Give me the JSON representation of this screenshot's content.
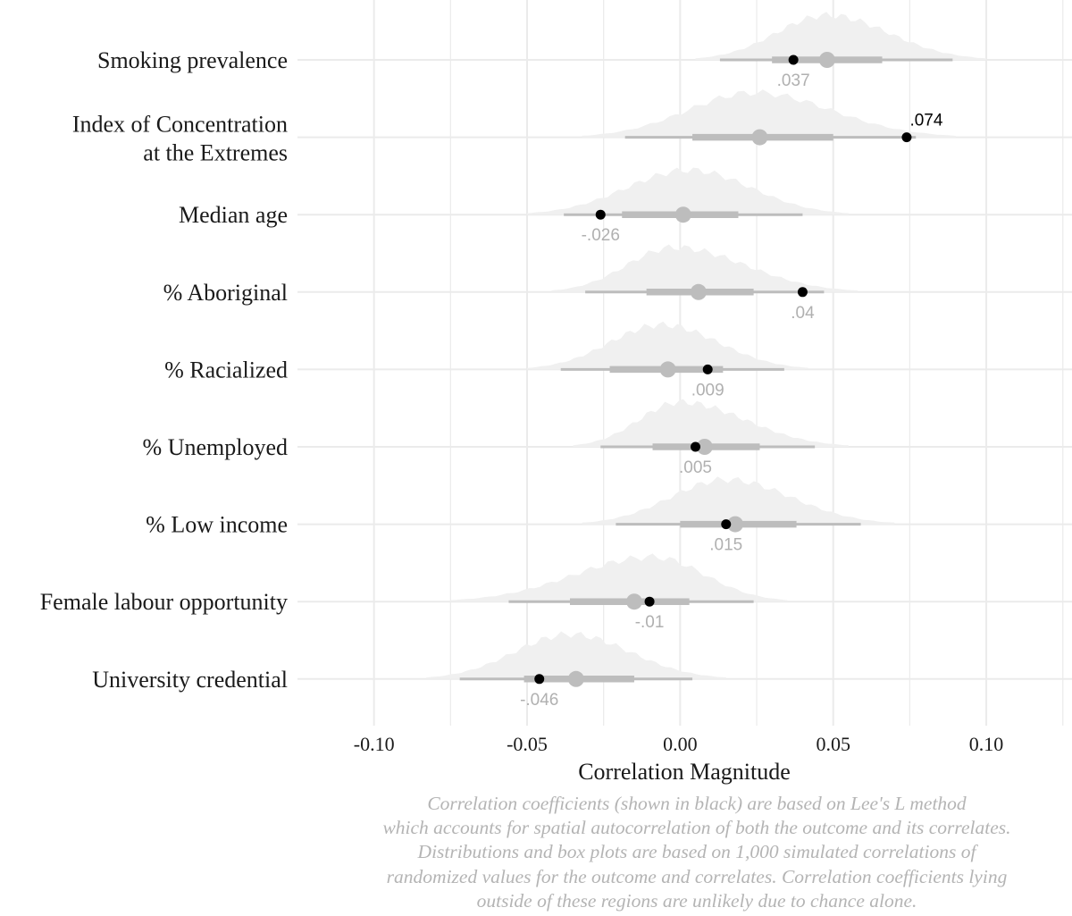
{
  "chart_data": {
    "type": "half-eye (distribution + interval) plot",
    "xlabel": "Correlation Magnitude",
    "xlim": [
      -0.125,
      0.128
    ],
    "xticks": [
      -0.1,
      -0.05,
      0.0,
      0.05,
      0.1
    ],
    "xtick_labels": [
      "-0.10",
      "-0.05",
      "0.00",
      "0.05",
      "0.10"
    ],
    "grid": "on",
    "colors": {
      "observed_point": "#000000",
      "observed_label_significant": "#000000",
      "observed_label": "#b0b0b0",
      "interval": "#bdbdbd",
      "median_point": "#bdbdbd",
      "density": "#f0f0f0",
      "grid": "#ebebeb"
    },
    "rows": [
      {
        "label": [
          "Smoking prevalence"
        ],
        "observed": 0.037,
        "observed_label": ".037",
        "significant": false,
        "label_pos": "below",
        "median": 0.048,
        "interval_66": [
          0.03,
          0.066
        ],
        "interval_95": [
          0.013,
          0.089
        ],
        "density_range": [
          0.005,
          0.1
        ],
        "density_peak": 0.048
      },
      {
        "label": [
          "Index of Concentration",
          "at the Extremes"
        ],
        "observed": 0.074,
        "observed_label": ".074",
        "significant": true,
        "label_pos": "above",
        "median": 0.026,
        "interval_66": [
          0.004,
          0.05
        ],
        "interval_95": [
          -0.018,
          0.077
        ],
        "density_range": [
          -0.032,
          0.09
        ],
        "density_peak": 0.024
      },
      {
        "label": [
          "Median age"
        ],
        "observed": -0.026,
        "observed_label": "-.026",
        "significant": false,
        "label_pos": "below",
        "median": 0.001,
        "interval_66": [
          -0.019,
          0.019
        ],
        "interval_95": [
          -0.038,
          0.04
        ],
        "density_range": [
          -0.05,
          0.055
        ],
        "density_peak": 0.003
      },
      {
        "label": [
          "% Aboriginal"
        ],
        "observed": 0.04,
        "observed_label": ".04",
        "significant": false,
        "label_pos": "below",
        "median": 0.006,
        "interval_66": [
          -0.011,
          0.024
        ],
        "interval_95": [
          -0.031,
          0.047
        ],
        "density_range": [
          -0.042,
          0.058
        ],
        "density_peak": -0.002
      },
      {
        "label": [
          "% Racialized"
        ],
        "observed": 0.009,
        "observed_label": ".009",
        "significant": false,
        "label_pos": "below",
        "median": -0.004,
        "interval_66": [
          -0.023,
          0.014
        ],
        "interval_95": [
          -0.039,
          0.034
        ],
        "density_range": [
          -0.05,
          0.042
        ],
        "density_peak": -0.006
      },
      {
        "label": [
          "% Unemployed"
        ],
        "observed": 0.005,
        "observed_label": ".005",
        "significant": false,
        "label_pos": "below",
        "median": 0.008,
        "interval_66": [
          -0.009,
          0.026
        ],
        "interval_95": [
          -0.026,
          0.044
        ],
        "density_range": [
          -0.035,
          0.055
        ],
        "density_peak": 0.0
      },
      {
        "label": [
          "% Low income"
        ],
        "observed": 0.015,
        "observed_label": ".015",
        "significant": false,
        "label_pos": "below",
        "median": 0.018,
        "interval_66": [
          0.0,
          0.038
        ],
        "interval_95": [
          -0.021,
          0.059
        ],
        "density_range": [
          -0.032,
          0.07
        ],
        "density_peak": 0.015
      },
      {
        "label": [
          "Female labour opportunity"
        ],
        "observed": -0.01,
        "observed_label": "-.01",
        "significant": false,
        "label_pos": "below",
        "median": -0.015,
        "interval_66": [
          -0.036,
          0.003
        ],
        "interval_95": [
          -0.056,
          0.024
        ],
        "density_range": [
          -0.075,
          0.035
        ],
        "density_peak": -0.009
      },
      {
        "label": [
          "University credential"
        ],
        "observed": -0.046,
        "observed_label": "-.046",
        "significant": false,
        "label_pos": "below",
        "median": -0.034,
        "interval_66": [
          -0.051,
          -0.015
        ],
        "interval_95": [
          -0.072,
          0.004
        ],
        "density_range": [
          -0.083,
          0.015
        ],
        "density_peak": -0.036
      }
    ]
  },
  "caption": [
    "Correlation coefficients (shown in black) are based on Lee's L method",
    "which accounts for spatial autocorrelation of both the outcome and its correlates.",
    "Distributions and box plots are based on 1,000 simulated correlations of",
    "randomized values for the outcome and correlates. Correlation coefficients lying",
    "outside of these regions are unlikely due to chance alone."
  ]
}
